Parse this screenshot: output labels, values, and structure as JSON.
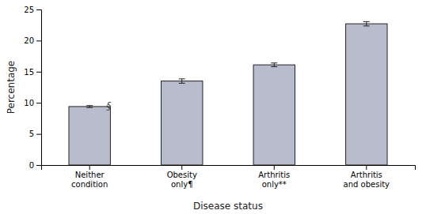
{
  "chart_data": {
    "type": "bar",
    "categories": [
      "Neither\ncondition",
      "Obesity\nonly¶",
      "Arthritis\nonly**",
      "Arthritis\nand obesity"
    ],
    "values": [
      9.4,
      13.5,
      16.1,
      22.7
    ],
    "errors": [
      0.15,
      0.35,
      0.3,
      0.35
    ],
    "color": "#b8bccc",
    "ylim": [
      0,
      25
    ],
    "yticks": [
      0,
      5,
      10,
      15,
      20,
      25
    ],
    "ylabel": "Percentage",
    "xlabel": "Disease status",
    "grid": false,
    "annotations": [
      {
        "text": "§",
        "x": "Neither\ncondition",
        "y": 9.55
      }
    ]
  }
}
